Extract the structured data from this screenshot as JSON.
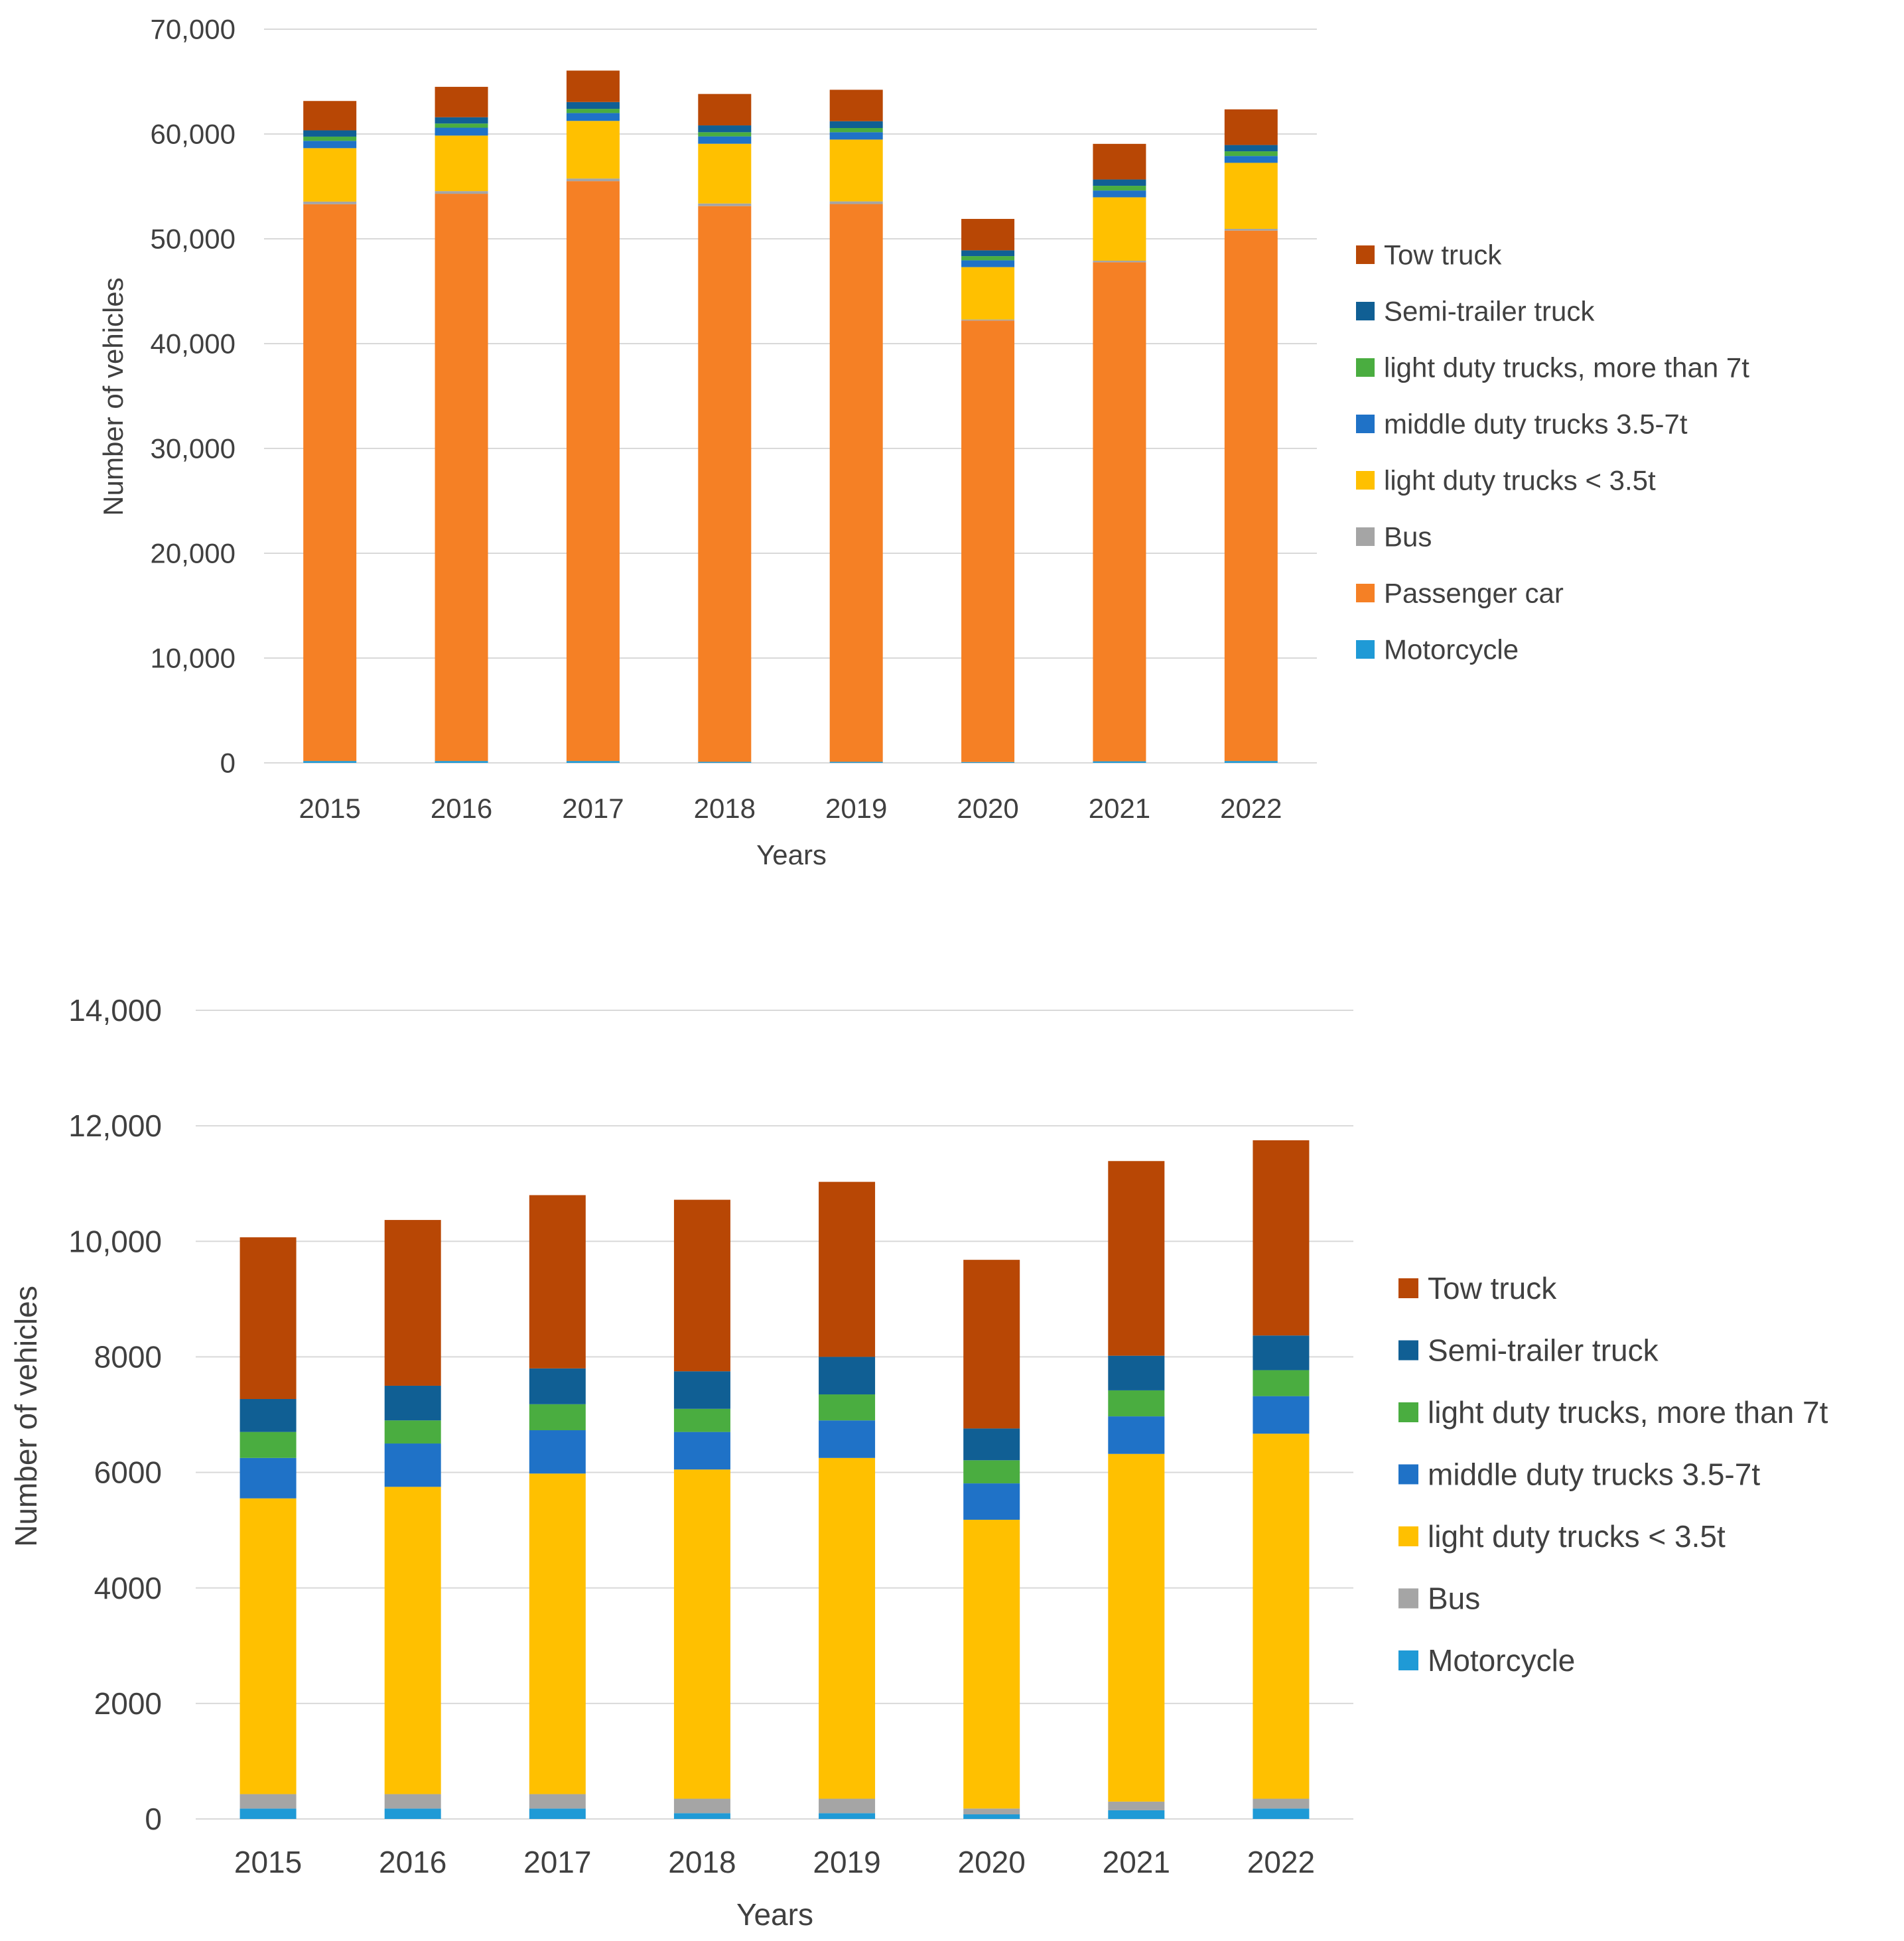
{
  "colors": {
    "motorcycle": "#1f9ad6",
    "passenger_car": "#f58025",
    "bus": "#a5a5a5",
    "light_duty_lt35": "#ffc000",
    "middle_duty": "#1f72c7",
    "light_duty_gt7": "#4aad40",
    "semi_trailer": "#105f94",
    "tow_truck": "#b84705",
    "gridline": "#d9d9d9",
    "text": "#404040"
  },
  "chart_data": [
    {
      "type": "bar",
      "stacked": true,
      "title": "",
      "xlabel": "Years",
      "ylabel": "Number of vehicles",
      "ylim": [
        0,
        70000
      ],
      "yticks": [
        "0",
        "10,000",
        "20,000",
        "30,000",
        "40,000",
        "50,000",
        "60,000",
        "70,000"
      ],
      "categories": [
        "2015",
        "2016",
        "2017",
        "2018",
        "2019",
        "2020",
        "2021",
        "2022"
      ],
      "legend_position": "right",
      "legend_order": [
        "Tow truck",
        "Semi-trailer truck",
        "light duty trucks, more than 7t",
        "middle duty trucks  3.5-7t",
        "light duty trucks < 3.5t",
        "Bus",
        "Passenger car",
        "Motorcycle"
      ],
      "series": [
        {
          "name": "Motorcycle",
          "color_key": "motorcycle",
          "values": [
            180,
            180,
            180,
            100,
            100,
            80,
            150,
            180
          ]
        },
        {
          "name": "Passenger car",
          "color_key": "passenger_car",
          "values": [
            53120,
            54120,
            55320,
            53020,
            53220,
            42120,
            47610,
            50600
          ]
        },
        {
          "name": "Bus",
          "color_key": "bus",
          "values": [
            250,
            250,
            250,
            250,
            250,
            100,
            150,
            170
          ]
        },
        {
          "name": "light duty trucks < 3.5t",
          "color_key": "light_duty_lt35",
          "values": [
            5100,
            5300,
            5500,
            5700,
            5900,
            5000,
            6050,
            6300
          ]
        },
        {
          "name": "middle duty trucks  3.5-7t",
          "color_key": "middle_duty",
          "values": [
            700,
            750,
            750,
            700,
            700,
            650,
            650,
            650
          ]
        },
        {
          "name": "light duty trucks, more than 7t",
          "color_key": "light_duty_gt7",
          "values": [
            400,
            400,
            400,
            400,
            400,
            400,
            450,
            450
          ]
        },
        {
          "name": "Semi-trailer truck",
          "color_key": "semi_trailer",
          "values": [
            600,
            600,
            650,
            650,
            650,
            550,
            600,
            600
          ]
        },
        {
          "name": "Tow truck",
          "color_key": "tow_truck",
          "values": [
            2800,
            2900,
            3000,
            3000,
            3000,
            3000,
            3400,
            3400
          ]
        }
      ]
    },
    {
      "type": "bar",
      "stacked": true,
      "title": "",
      "xlabel": "Years",
      "ylabel": "Number of vehicles",
      "ylim": [
        0,
        14000
      ],
      "yticks": [
        "0",
        "2000",
        "4000",
        "6000",
        "8000",
        "10,000",
        "12,000",
        "14,000"
      ],
      "categories": [
        "2015",
        "2016",
        "2017",
        "2018",
        "2019",
        "2020",
        "2021",
        "2022"
      ],
      "legend_position": "right",
      "legend_order": [
        "Tow truck",
        "Semi-trailer truck",
        "light duty trucks, more than 7t",
        "middle duty trucks  3.5-7t",
        "light duty trucks < 3.5t",
        "Bus",
        "Motorcycle"
      ],
      "series": [
        {
          "name": "Motorcycle",
          "color_key": "motorcycle",
          "values": [
            180,
            180,
            180,
            100,
            100,
            80,
            150,
            180
          ]
        },
        {
          "name": "Bus",
          "color_key": "bus",
          "values": [
            250,
            250,
            250,
            250,
            250,
            100,
            150,
            170
          ]
        },
        {
          "name": "light duty trucks < 3.5t",
          "color_key": "light_duty_lt35",
          "values": [
            5120,
            5320,
            5550,
            5700,
            5900,
            5000,
            6020,
            6320
          ]
        },
        {
          "name": "middle duty trucks  3.5-7t",
          "color_key": "middle_duty",
          "values": [
            700,
            750,
            750,
            650,
            650,
            630,
            650,
            650
          ]
        },
        {
          "name": "light duty trucks, more than 7t",
          "color_key": "light_duty_gt7",
          "values": [
            450,
            400,
            450,
            400,
            450,
            400,
            450,
            450
          ]
        },
        {
          "name": "Semi-trailer truck",
          "color_key": "semi_trailer",
          "values": [
            570,
            600,
            620,
            650,
            650,
            550,
            600,
            600
          ]
        },
        {
          "name": "Tow truck",
          "color_key": "tow_truck",
          "values": [
            2800,
            2870,
            3000,
            2970,
            3030,
            2920,
            3370,
            3380
          ]
        }
      ]
    }
  ]
}
